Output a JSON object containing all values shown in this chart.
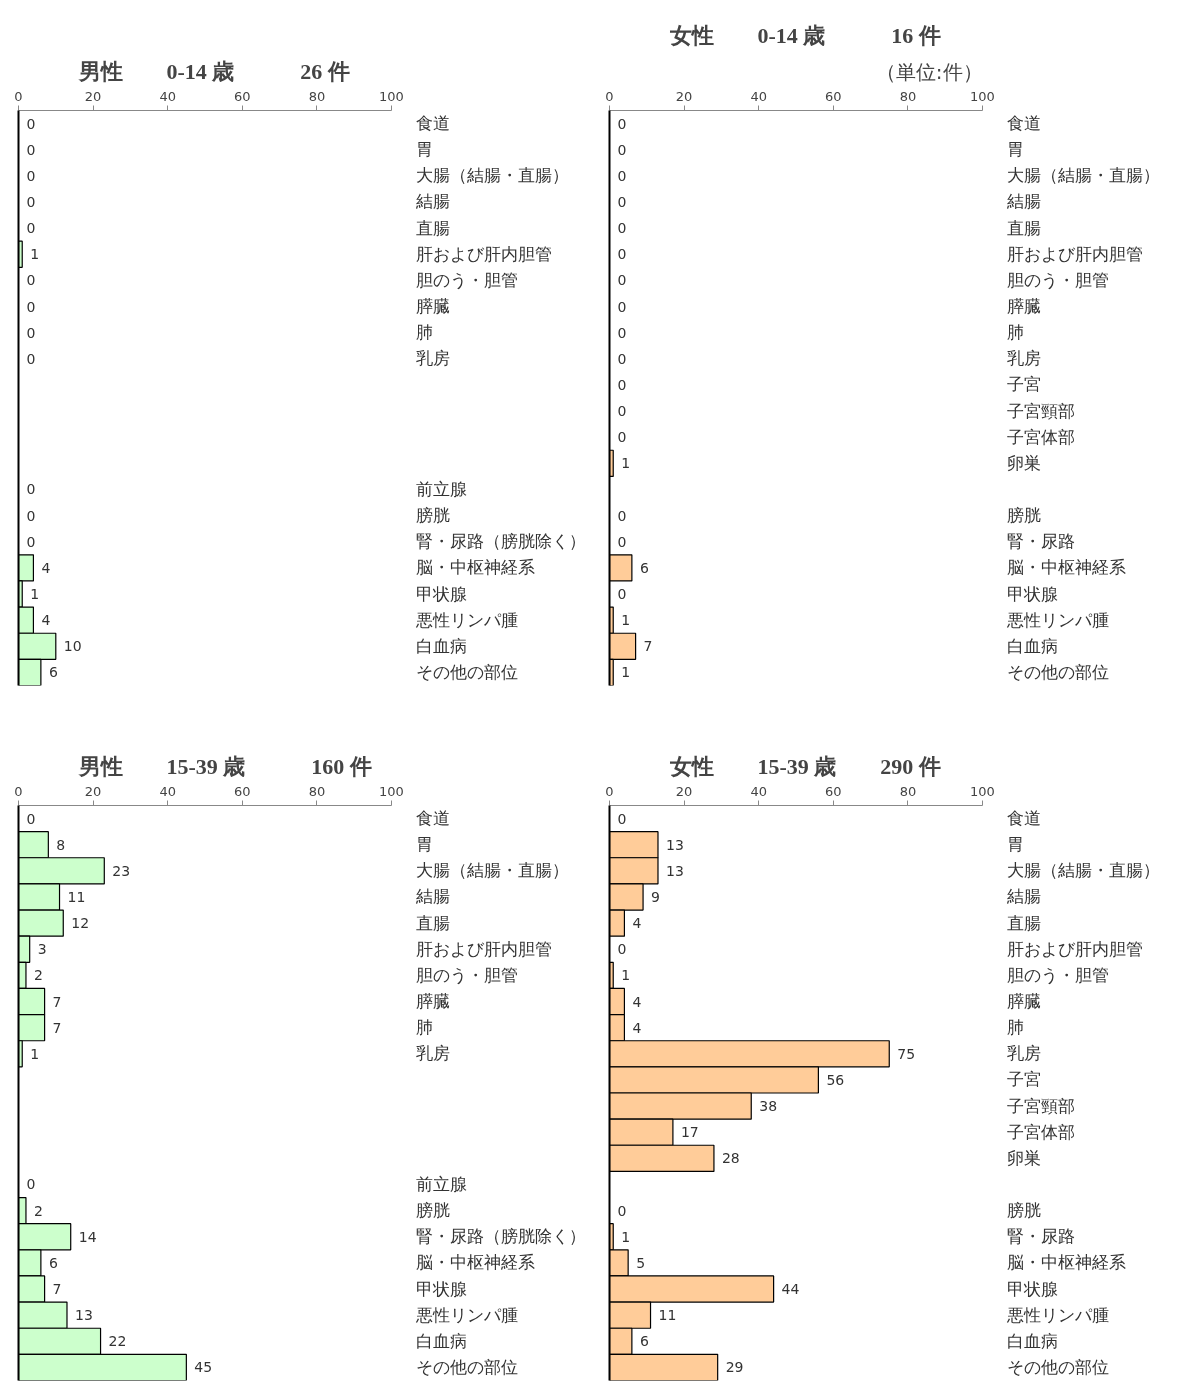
{
  "chart_data": [
    {
      "type": "bar",
      "orientation": "horizontal",
      "title": "男性　　0-14 歳　　　26 件",
      "color": "#ccffcc",
      "xlim": [
        0,
        100
      ],
      "xticks": [
        0,
        20,
        40,
        60,
        80,
        100
      ],
      "data_labels": true,
      "categories": [
        "食道",
        "胃",
        "大腸（結腸・直腸）",
        "結腸",
        "直腸",
        "肝および肝内胆管",
        "胆のう・胆管",
        "膵臓",
        "肺",
        "乳房",
        null,
        null,
        null,
        null,
        "前立腺",
        "膀胱",
        "腎・尿路（膀胱除く）",
        "脳・中枢神経系",
        "甲状腺",
        "悪性リンパ腫",
        "白血病",
        "その他の部位"
      ],
      "values": [
        0,
        0,
        0,
        0,
        0,
        1,
        0,
        0,
        0,
        0,
        null,
        null,
        null,
        null,
        0,
        0,
        0,
        4,
        1,
        4,
        10,
        6
      ]
    },
    {
      "type": "bar",
      "orientation": "horizontal",
      "title": "女性　　0-14 歳　　　16 件",
      "color": "#ffcc99",
      "xlim": [
        0,
        100
      ],
      "xticks": [
        0,
        20,
        40,
        60,
        80,
        100
      ],
      "data_labels": true,
      "annotations": [
        "（単位:件）"
      ],
      "categories": [
        "食道",
        "胃",
        "大腸（結腸・直腸）",
        "結腸",
        "直腸",
        "肝および肝内胆管",
        "胆のう・胆管",
        "膵臓",
        "肺",
        "乳房",
        "子宮",
        "子宮頸部",
        "子宮体部",
        "卵巣",
        null,
        "膀胱",
        "腎・尿路",
        "脳・中枢神経系",
        "甲状腺",
        "悪性リンパ腫",
        "白血病",
        "その他の部位"
      ],
      "values": [
        0,
        0,
        0,
        0,
        0,
        0,
        0,
        0,
        0,
        0,
        0,
        0,
        0,
        1,
        null,
        0,
        0,
        6,
        0,
        1,
        7,
        1
      ]
    },
    {
      "type": "bar",
      "orientation": "horizontal",
      "title": "男性　　15-39 歳　　　160 件",
      "color": "#ccffcc",
      "xlim": [
        0,
        100
      ],
      "xticks": [
        0,
        20,
        40,
        60,
        80,
        100
      ],
      "data_labels": true,
      "categories": [
        "食道",
        "胃",
        "大腸（結腸・直腸）",
        "結腸",
        "直腸",
        "肝および肝内胆管",
        "胆のう・胆管",
        "膵臓",
        "肺",
        "乳房",
        null,
        null,
        null,
        null,
        "前立腺",
        "膀胱",
        "腎・尿路（膀胱除く）",
        "脳・中枢神経系",
        "甲状腺",
        "悪性リンパ腫",
        "白血病",
        "その他の部位"
      ],
      "values": [
        0,
        8,
        23,
        11,
        12,
        3,
        2,
        7,
        7,
        1,
        null,
        null,
        null,
        null,
        0,
        2,
        14,
        6,
        7,
        13,
        22,
        45
      ]
    },
    {
      "type": "bar",
      "orientation": "horizontal",
      "title": "女性　　15-39 歳　　290 件",
      "color": "#ffcc99",
      "xlim": [
        0,
        100
      ],
      "xticks": [
        0,
        20,
        40,
        60,
        80,
        100
      ],
      "data_labels": true,
      "categories": [
        "食道",
        "胃",
        "大腸（結腸・直腸）",
        "結腸",
        "直腸",
        "肝および肝内胆管",
        "胆のう・胆管",
        "膵臓",
        "肺",
        "乳房",
        "子宮",
        "子宮頸部",
        "子宮体部",
        "卵巣",
        null,
        "膀胱",
        "腎・尿路",
        "脳・中枢神経系",
        "甲状腺",
        "悪性リンパ腫",
        "白血病",
        "その他の部位"
      ],
      "values": [
        0,
        13,
        13,
        9,
        4,
        0,
        1,
        4,
        4,
        75,
        56,
        38,
        17,
        28,
        null,
        0,
        1,
        5,
        44,
        11,
        6,
        29
      ]
    }
  ]
}
